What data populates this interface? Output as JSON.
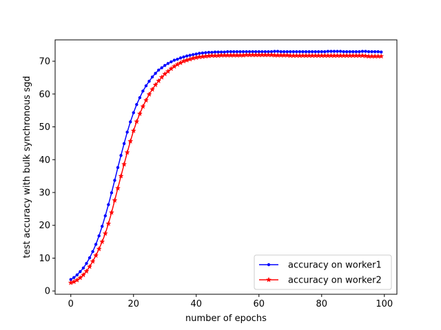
{
  "chart_data": {
    "type": "line",
    "title": "",
    "xlabel": "number of epochs",
    "ylabel": "test accuracy with bulk synchronous sgd",
    "xlim": [
      -5,
      104
    ],
    "ylim": [
      -1,
      76.5
    ],
    "xticks": [
      0,
      20,
      40,
      60,
      80,
      100
    ],
    "yticks": [
      0,
      10,
      20,
      30,
      40,
      50,
      60,
      70
    ],
    "grid": false,
    "legend_position": "lower-right",
    "series": [
      {
        "name": "accuracy on worker1",
        "color": "#0000ff",
        "marker": "point",
        "x": [
          0,
          1,
          2,
          3,
          4,
          5,
          6,
          7,
          8,
          9,
          10,
          11,
          12,
          13,
          14,
          15,
          16,
          17,
          18,
          19,
          20,
          21,
          22,
          23,
          24,
          25,
          26,
          27,
          28,
          29,
          30,
          31,
          32,
          33,
          34,
          35,
          36,
          37,
          38,
          39,
          40,
          41,
          42,
          43,
          44,
          45,
          46,
          47,
          48,
          49,
          50,
          51,
          52,
          53,
          54,
          55,
          56,
          57,
          58,
          59,
          60,
          61,
          62,
          63,
          64,
          65,
          66,
          67,
          68,
          69,
          70,
          71,
          72,
          73,
          74,
          75,
          76,
          77,
          78,
          79,
          80,
          81,
          82,
          83,
          84,
          85,
          86,
          87,
          88,
          89,
          90,
          91,
          92,
          93,
          94,
          95,
          96,
          97,
          98,
          99
        ],
        "values": [
          3.5,
          4.1,
          4.9,
          5.9,
          7.0,
          8.4,
          10.1,
          12.0,
          14.2,
          16.8,
          19.7,
          22.9,
          26.3,
          29.9,
          33.7,
          37.6,
          41.3,
          44.9,
          48.4,
          51.5,
          54.3,
          56.8,
          58.9,
          60.9,
          62.5,
          63.9,
          65.2,
          66.3,
          67.3,
          68.0,
          68.7,
          69.3,
          69.8,
          70.3,
          70.6,
          71.0,
          71.3,
          71.6,
          71.8,
          72.0,
          72.2,
          72.4,
          72.5,
          72.6,
          72.7,
          72.7,
          72.8,
          72.8,
          72.8,
          72.8,
          72.9,
          72.9,
          72.9,
          72.9,
          72.9,
          72.9,
          72.9,
          72.9,
          72.9,
          72.9,
          72.9,
          72.9,
          72.9,
          72.9,
          72.9,
          73.0,
          73.0,
          72.9,
          72.9,
          72.9,
          72.9,
          72.9,
          72.9,
          72.9,
          72.9,
          72.9,
          72.9,
          72.9,
          72.9,
          72.9,
          72.9,
          72.9,
          73.0,
          73.0,
          73.0,
          73.0,
          73.0,
          72.9,
          72.9,
          72.9,
          72.9,
          72.9,
          72.9,
          73.0,
          73.0,
          72.9,
          72.9,
          72.9,
          72.9,
          72.8
        ]
      },
      {
        "name": "accuracy on worker2",
        "color": "#ff0000",
        "marker": "star",
        "x": [
          0,
          1,
          2,
          3,
          4,
          5,
          6,
          7,
          8,
          9,
          10,
          11,
          12,
          13,
          14,
          15,
          16,
          17,
          18,
          19,
          20,
          21,
          22,
          23,
          24,
          25,
          26,
          27,
          28,
          29,
          30,
          31,
          32,
          33,
          34,
          35,
          36,
          37,
          38,
          39,
          40,
          41,
          42,
          43,
          44,
          45,
          46,
          47,
          48,
          49,
          50,
          51,
          52,
          53,
          54,
          55,
          56,
          57,
          58,
          59,
          60,
          61,
          62,
          63,
          64,
          65,
          66,
          67,
          68,
          69,
          70,
          71,
          72,
          73,
          74,
          75,
          76,
          77,
          78,
          79,
          80,
          81,
          82,
          83,
          84,
          85,
          86,
          87,
          88,
          89,
          90,
          91,
          92,
          93,
          94,
          95,
          96,
          97,
          98,
          99
        ],
        "values": [
          2.5,
          2.8,
          3.3,
          4.0,
          4.9,
          6.0,
          7.4,
          9.0,
          10.8,
          12.8,
          15.0,
          17.5,
          20.5,
          23.9,
          27.6,
          31.3,
          35.0,
          38.6,
          42.2,
          45.6,
          48.8,
          51.6,
          54.0,
          56.2,
          58.1,
          59.9,
          61.4,
          62.8,
          64.0,
          65.1,
          66.1,
          66.9,
          67.7,
          68.4,
          69.0,
          69.5,
          70.0,
          70.3,
          70.6,
          70.9,
          71.1,
          71.3,
          71.4,
          71.5,
          71.6,
          71.7,
          71.7,
          71.7,
          71.8,
          71.8,
          71.8,
          71.8,
          71.8,
          71.8,
          71.8,
          71.8,
          71.9,
          71.9,
          71.9,
          71.9,
          71.9,
          71.9,
          71.9,
          71.9,
          71.9,
          71.8,
          71.8,
          71.8,
          71.8,
          71.8,
          71.7,
          71.7,
          71.7,
          71.7,
          71.7,
          71.7,
          71.7,
          71.7,
          71.7,
          71.7,
          71.7,
          71.7,
          71.7,
          71.7,
          71.7,
          71.7,
          71.7,
          71.7,
          71.7,
          71.7,
          71.7,
          71.7,
          71.7,
          71.7,
          71.6,
          71.5,
          71.5,
          71.5,
          71.5,
          71.5
        ]
      }
    ]
  }
}
